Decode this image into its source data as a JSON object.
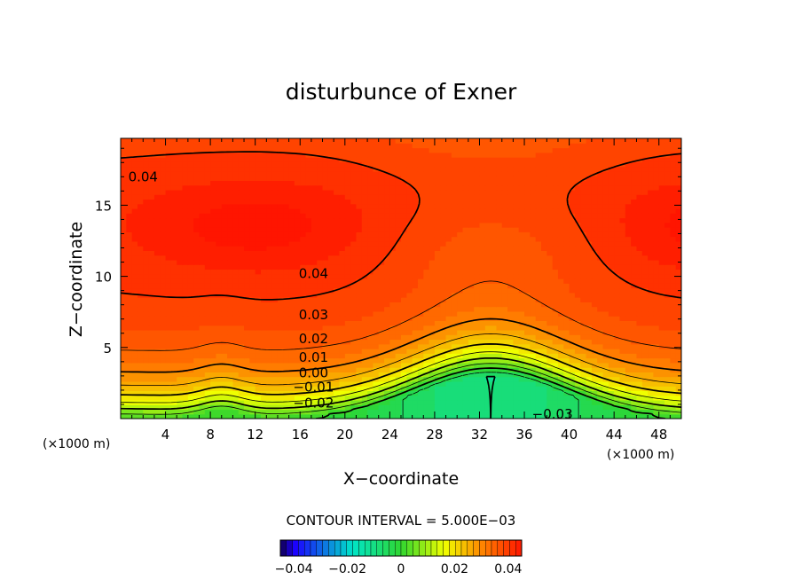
{
  "chart_data": {
    "type": "heatmap",
    "subtype": "filled-contour",
    "title": "disturbunce of Exner",
    "xlabel": "X−coordinate",
    "ylabel": "Z−coordinate",
    "x_unit_label": "(×1000 m)",
    "x_ticks": [
      4,
      8,
      12,
      16,
      20,
      24,
      28,
      32,
      36,
      40,
      44,
      48
    ],
    "y_ticks": [
      5,
      10,
      15
    ],
    "xlim": [
      0,
      50
    ],
    "ylim": [
      0,
      19.7
    ],
    "contour_interval_text": "CONTOUR INTERVAL = 5.000E−03",
    "contour_interval": 0.005,
    "contour_labels": [
      {
        "text": "0.04",
        "x": 2.0,
        "y": 17.0
      },
      {
        "text": "0.04",
        "x": 17.2,
        "y": 10.2
      },
      {
        "text": "0.03",
        "x": 17.2,
        "y": 7.3
      },
      {
        "text": "0.02",
        "x": 17.2,
        "y": 5.6
      },
      {
        "text": "0.01",
        "x": 17.2,
        "y": 4.3
      },
      {
        "text": "0.00",
        "x": 17.2,
        "y": 3.2
      },
      {
        "text": "−0.01",
        "x": 17.2,
        "y": 2.2
      },
      {
        "text": "−0.02",
        "x": 17.2,
        "y": 1.1
      },
      {
        "text": "−0.03",
        "x": 38.5,
        "y": 0.3
      }
    ],
    "value_range": [
      -0.045,
      0.045
    ],
    "colorbar": {
      "ticks": [
        {
          "value": -0.04,
          "label": "−0.04"
        },
        {
          "value": -0.02,
          "label": "−0.02"
        },
        {
          "value": 0,
          "label": "0"
        },
        {
          "value": 0.02,
          "label": "0.02"
        },
        {
          "value": 0.04,
          "label": "0.04"
        }
      ]
    },
    "colors": {
      "low": "#1b00ff",
      "mid_low": "#00e5c8",
      "zero": "#2fd62f",
      "mid_high": "#f0ff00",
      "high": "#ff1500"
    }
  }
}
